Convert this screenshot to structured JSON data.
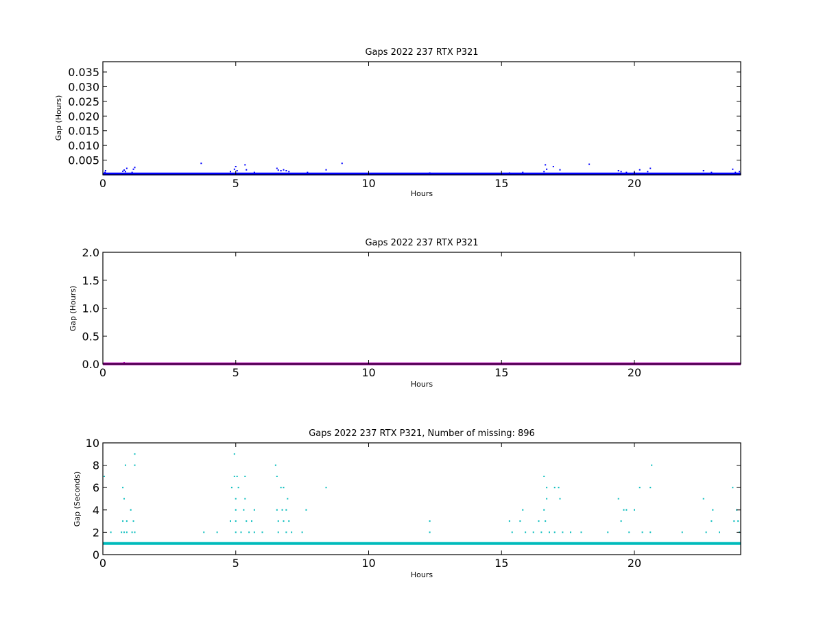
{
  "chart_data": [
    {
      "type": "scatter",
      "title": "Gaps 2022 237 RTX  P321",
      "xlabel": "Hours",
      "ylabel": "Gap (Hours)",
      "xlim": [
        0,
        24
      ],
      "ylim": [
        0,
        0.0385
      ],
      "xticks": [
        0,
        5,
        10,
        15,
        20
      ],
      "yticks": [
        0.005,
        0.01,
        0.015,
        0.02,
        0.025,
        0.03,
        0.035
      ],
      "ytick_labels": [
        "0.005",
        "0.010",
        "0.015",
        "0.020",
        "0.025",
        "0.030",
        "0.035"
      ],
      "color": "#0000ff",
      "baseline_y": 0.00028,
      "points": [
        [
          0.08,
          0.0008
        ],
        [
          0.1,
          0.0014
        ],
        [
          0.75,
          0.0012
        ],
        [
          0.8,
          0.0016
        ],
        [
          0.85,
          0.0011
        ],
        [
          0.9,
          0.0022
        ],
        [
          1.1,
          0.0008
        ],
        [
          1.15,
          0.0019
        ],
        [
          1.2,
          0.0025
        ],
        [
          3.7,
          0.0039
        ],
        [
          4.8,
          0.0011
        ],
        [
          4.95,
          0.0019
        ],
        [
          5.0,
          0.0028
        ],
        [
          5.05,
          0.0014
        ],
        [
          5.35,
          0.0034
        ],
        [
          5.4,
          0.0017
        ],
        [
          5.7,
          0.0008
        ],
        [
          6.55,
          0.0022
        ],
        [
          6.6,
          0.0016
        ],
        [
          6.7,
          0.0014
        ],
        [
          6.8,
          0.0017
        ],
        [
          6.9,
          0.0014
        ],
        [
          7.0,
          0.0011
        ],
        [
          7.7,
          0.0008
        ],
        [
          8.4,
          0.0017
        ],
        [
          9.0,
          0.0039
        ],
        [
          12.3,
          0.0006
        ],
        [
          15.3,
          0.0006
        ],
        [
          15.8,
          0.0008
        ],
        [
          16.6,
          0.0011
        ],
        [
          16.65,
          0.0034
        ],
        [
          16.7,
          0.0019
        ],
        [
          16.95,
          0.0028
        ],
        [
          17.2,
          0.0017
        ],
        [
          18.3,
          0.0036
        ],
        [
          19.4,
          0.0014
        ],
        [
          19.5,
          0.0011
        ],
        [
          19.7,
          0.0008
        ],
        [
          20.0,
          0.0008
        ],
        [
          20.2,
          0.0017
        ],
        [
          20.5,
          0.0011
        ],
        [
          20.6,
          0.0022
        ],
        [
          22.6,
          0.0014
        ],
        [
          22.9,
          0.0008
        ],
        [
          23.7,
          0.0019
        ],
        [
          23.8,
          0.0008
        ],
        [
          23.95,
          0.0011
        ]
      ]
    },
    {
      "type": "scatter",
      "title": "Gaps 2022 237 RTX  P321",
      "xlabel": "Hours",
      "ylabel": "Gap (Hours)",
      "xlim": [
        0,
        24
      ],
      "ylim": [
        0,
        2.0
      ],
      "xticks": [
        0,
        5,
        10,
        15,
        20
      ],
      "yticks": [
        0.0,
        0.5,
        1.0,
        1.5,
        2.0
      ],
      "ytick_labels": [
        "0.0",
        "0.5",
        "1.0",
        "1.5",
        "2.0"
      ],
      "color": "#aa00aa",
      "baseline_y": 0.003,
      "points": [
        [
          0.8,
          0.025
        ]
      ]
    },
    {
      "type": "scatter",
      "title": "Gaps 2022 237 RTX  P321, Number of missing: 896",
      "xlabel": "Hours",
      "ylabel": "Gap (Seconds)",
      "xlim": [
        0,
        24
      ],
      "ylim": [
        0,
        10
      ],
      "xticks": [
        0,
        5,
        10,
        15,
        20
      ],
      "yticks": [
        0,
        2,
        4,
        6,
        8,
        10
      ],
      "ytick_labels": [
        "0",
        "2",
        "4",
        "6",
        "8",
        "10"
      ],
      "color": "#00bbbb",
      "baseline_y": 1,
      "points": [
        [
          0.05,
          7
        ],
        [
          0.3,
          2
        ],
        [
          0.75,
          6
        ],
        [
          0.7,
          2
        ],
        [
          0.8,
          5
        ],
        [
          0.85,
          8
        ],
        [
          0.75,
          3
        ],
        [
          0.9,
          3
        ],
        [
          0.8,
          2
        ],
        [
          0.9,
          2
        ],
        [
          1.05,
          4
        ],
        [
          1.1,
          2
        ],
        [
          1.2,
          9
        ],
        [
          1.2,
          8
        ],
        [
          1.15,
          3
        ],
        [
          1.2,
          2
        ],
        [
          3.8,
          2
        ],
        [
          4.3,
          2
        ],
        [
          4.85,
          6
        ],
        [
          4.8,
          3
        ],
        [
          4.95,
          9
        ],
        [
          4.95,
          7
        ],
        [
          5.0,
          5
        ],
        [
          5.0,
          4
        ],
        [
          5.0,
          3
        ],
        [
          5.0,
          2
        ],
        [
          5.05,
          7
        ],
        [
          5.1,
          6
        ],
        [
          5.2,
          2
        ],
        [
          5.3,
          4
        ],
        [
          5.35,
          7
        ],
        [
          5.35,
          5
        ],
        [
          5.4,
          3
        ],
        [
          5.5,
          2
        ],
        [
          5.6,
          3
        ],
        [
          5.7,
          4
        ],
        [
          5.7,
          2
        ],
        [
          6.0,
          2
        ],
        [
          6.5,
          8
        ],
        [
          6.55,
          7
        ],
        [
          6.55,
          4
        ],
        [
          6.6,
          3
        ],
        [
          6.6,
          2
        ],
        [
          6.7,
          6
        ],
        [
          6.75,
          4
        ],
        [
          6.8,
          6
        ],
        [
          6.8,
          3
        ],
        [
          6.9,
          4
        ],
        [
          6.9,
          2
        ],
        [
          6.95,
          5
        ],
        [
          7.0,
          3
        ],
        [
          7.1,
          2
        ],
        [
          7.5,
          2
        ],
        [
          7.65,
          4
        ],
        [
          8.4,
          6
        ],
        [
          12.3,
          3
        ],
        [
          12.3,
          2
        ],
        [
          15.3,
          3
        ],
        [
          15.4,
          2
        ],
        [
          15.7,
          3
        ],
        [
          15.8,
          4
        ],
        [
          15.9,
          2
        ],
        [
          16.2,
          2
        ],
        [
          16.4,
          3
        ],
        [
          16.5,
          2
        ],
        [
          16.6,
          7
        ],
        [
          16.6,
          4
        ],
        [
          16.65,
          3
        ],
        [
          16.7,
          6
        ],
        [
          16.7,
          5
        ],
        [
          16.8,
          2
        ],
        [
          17.0,
          6
        ],
        [
          17.0,
          2
        ],
        [
          17.15,
          6
        ],
        [
          17.2,
          5
        ],
        [
          17.3,
          2
        ],
        [
          17.6,
          2
        ],
        [
          18.0,
          2
        ],
        [
          19.0,
          2
        ],
        [
          19.4,
          5
        ],
        [
          19.5,
          3
        ],
        [
          19.6,
          4
        ],
        [
          19.7,
          4
        ],
        [
          19.8,
          2
        ],
        [
          20.0,
          4
        ],
        [
          20.2,
          6
        ],
        [
          20.3,
          2
        ],
        [
          20.6,
          6
        ],
        [
          20.65,
          8
        ],
        [
          20.6,
          2
        ],
        [
          21.8,
          2
        ],
        [
          22.6,
          5
        ],
        [
          22.7,
          2
        ],
        [
          22.9,
          3
        ],
        [
          22.95,
          4
        ],
        [
          23.2,
          2
        ],
        [
          23.7,
          6
        ],
        [
          23.75,
          3
        ],
        [
          23.85,
          4
        ],
        [
          23.9,
          3
        ],
        [
          23.95,
          2
        ]
      ]
    }
  ]
}
